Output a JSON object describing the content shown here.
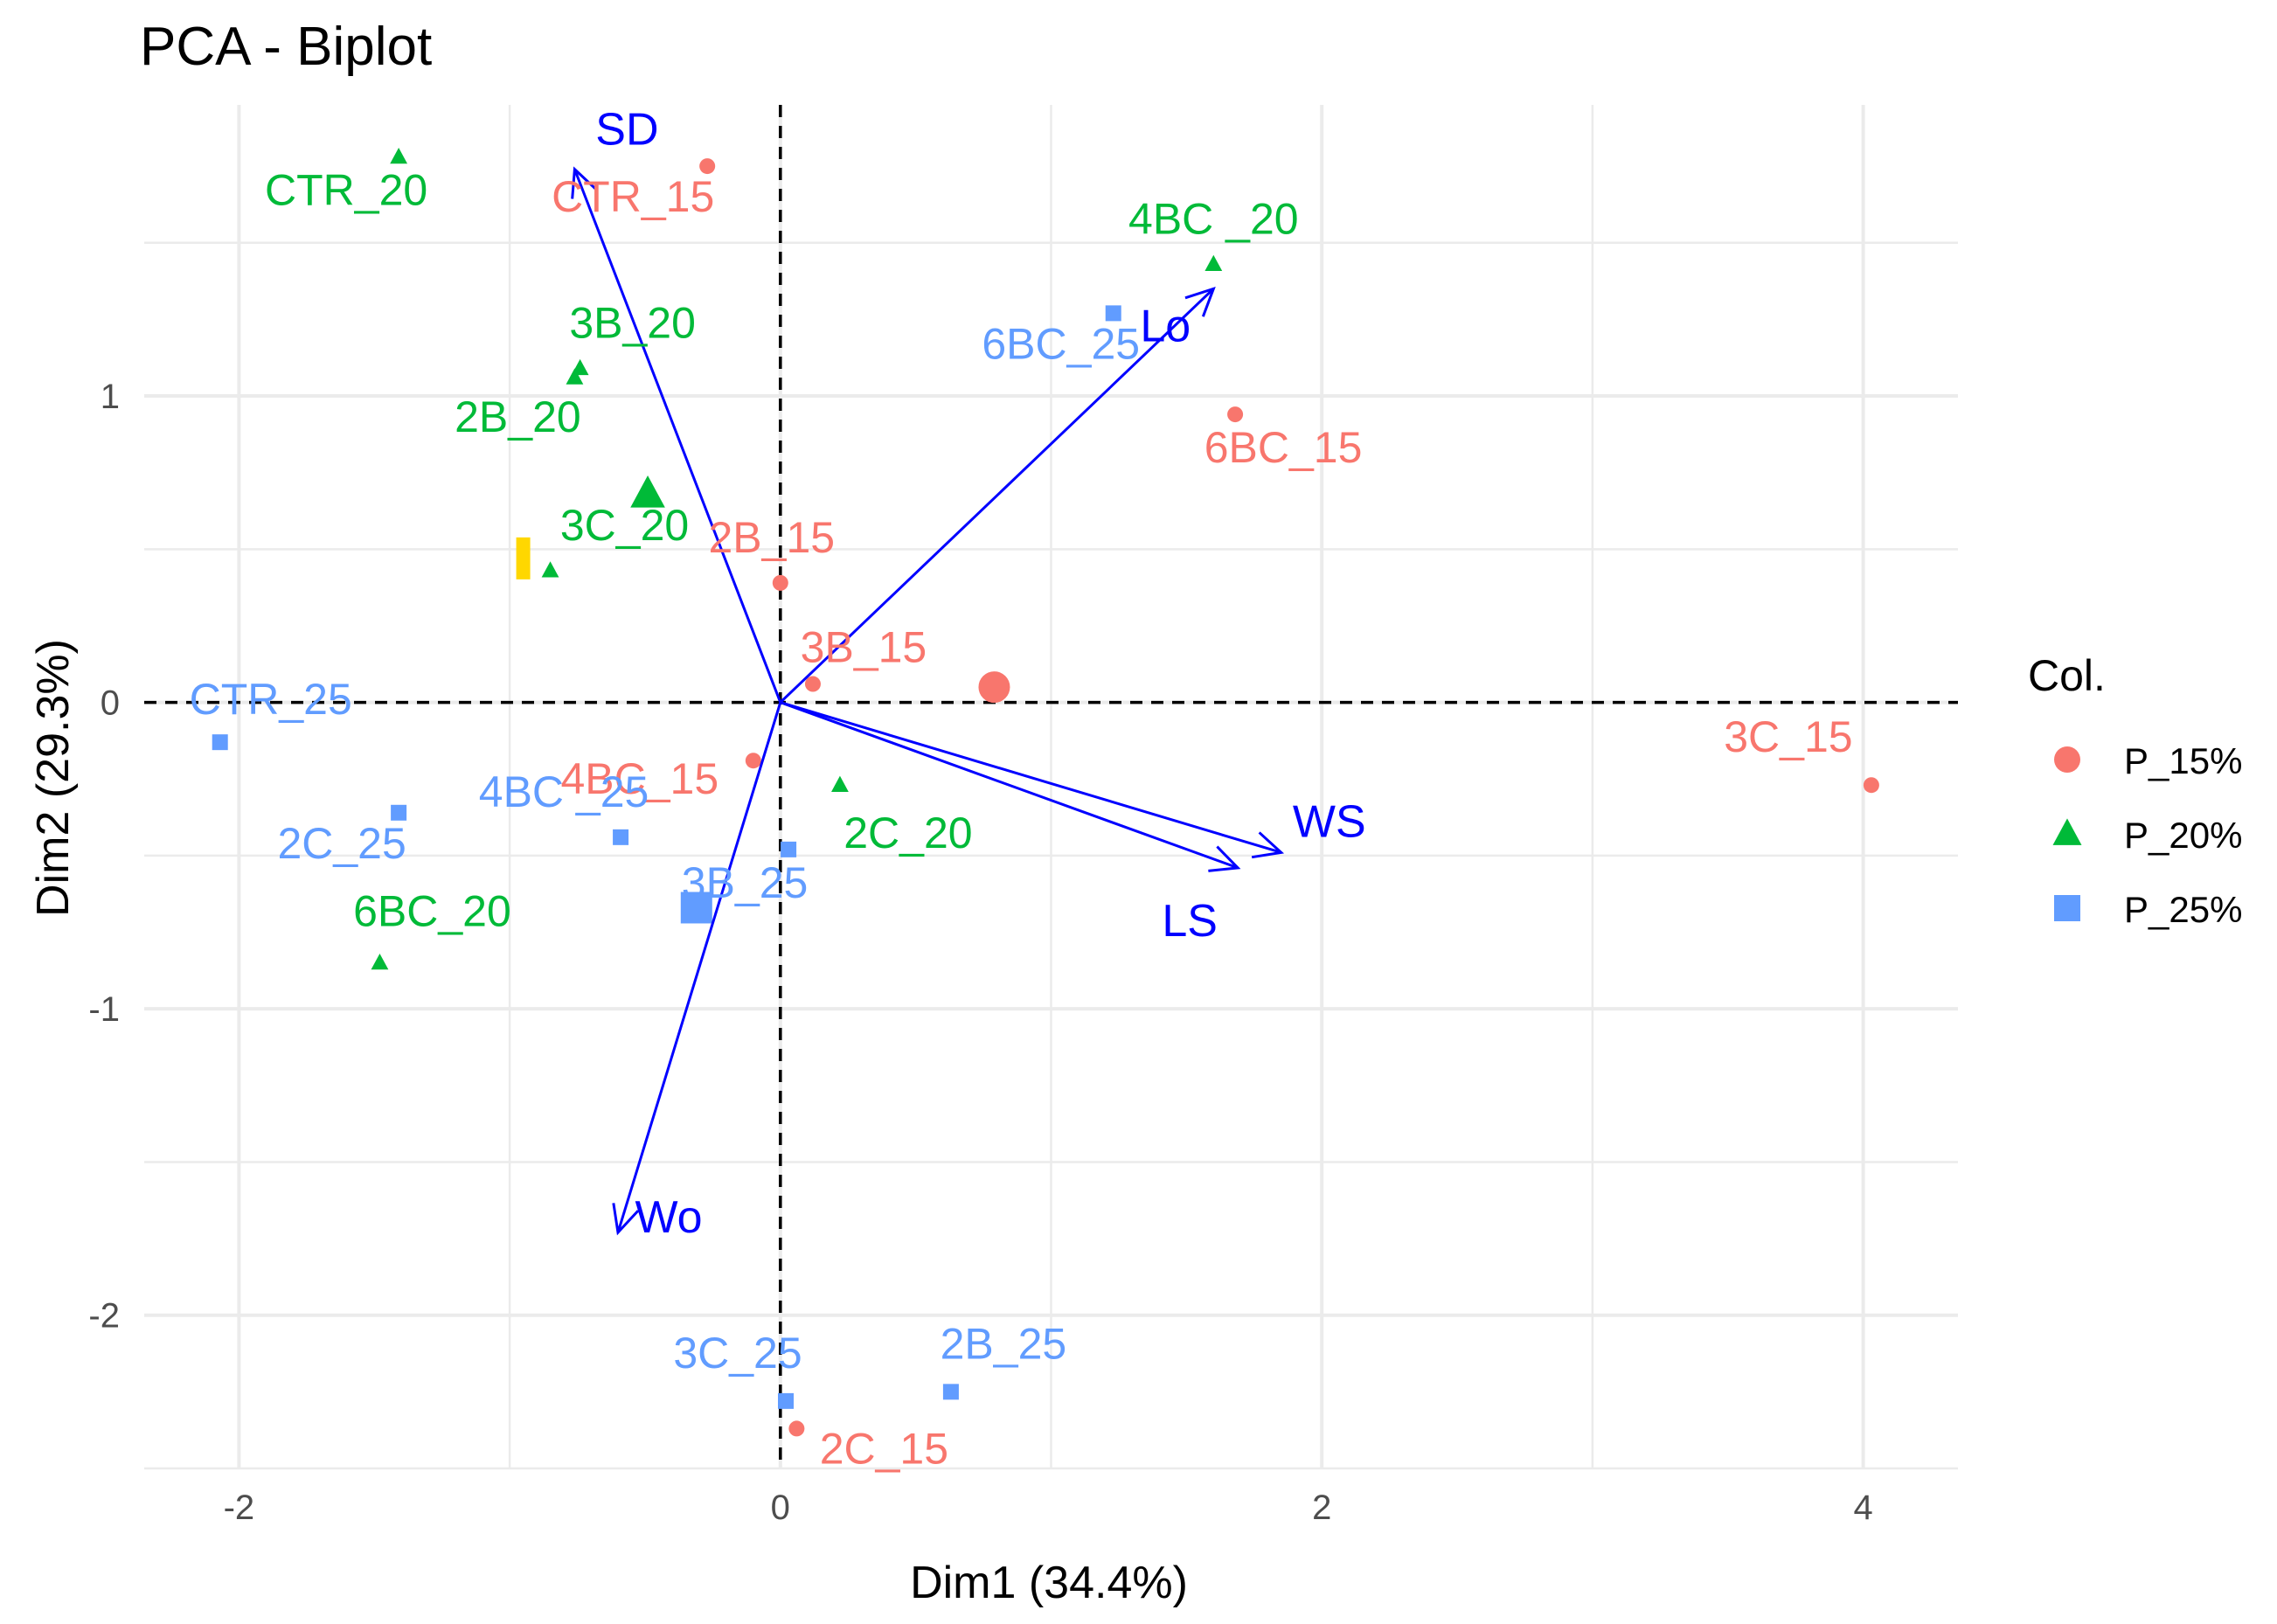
{
  "chart_data": {
    "type": "scatter",
    "title": "PCA - Biplot",
    "xlabel": "Dim1 (34.4%)",
    "ylabel": "Dim2 (29.3%)",
    "xlim": [
      -2.35,
      4.35
    ],
    "ylim": [
      -2.5,
      1.95
    ],
    "xticks": [
      -2,
      0,
      2,
      4
    ],
    "yticks": [
      -2,
      -1,
      0,
      1
    ],
    "grid": true,
    "legend_title": "Col.",
    "legend_position": "right",
    "series": [
      {
        "name": "P_15%",
        "color": "#F8766D",
        "shape": "circle",
        "points": [
          {
            "label": "CTR_15",
            "x": -0.27,
            "y": 1.75
          },
          {
            "label": "6BC_15",
            "x": 1.68,
            "y": 0.94
          },
          {
            "label": "2B_15",
            "x": 0.0,
            "y": 0.39
          },
          {
            "label": "3B_15",
            "x": 0.12,
            "y": 0.06
          },
          {
            "label": "4BC_15",
            "x": -0.1,
            "y": -0.19
          },
          {
            "label": "3C_15",
            "x": 4.03,
            "y": -0.27
          },
          {
            "label": "2C_15",
            "x": 0.06,
            "y": -2.37
          }
        ],
        "centroid": {
          "x": 0.79,
          "y": 0.05
        }
      },
      {
        "name": "P_20%",
        "color": "#00BA38",
        "shape": "triangle",
        "points": [
          {
            "label": "CTR_20",
            "x": -1.41,
            "y": 1.78
          },
          {
            "label": "4BC _20",
            "x": 1.6,
            "y": 1.43
          },
          {
            "label": "3B_20",
            "x": -0.74,
            "y": 1.09
          },
          {
            "label": "2B_20",
            "x": -0.76,
            "y": 1.06
          },
          {
            "label": "3C_20",
            "x": -0.85,
            "y": 0.43
          },
          {
            "label": "2C_20",
            "x": 0.22,
            "y": -0.27
          },
          {
            "label": "6BC_20",
            "x": -1.48,
            "y": -0.85
          }
        ],
        "centroid": {
          "x": -0.49,
          "y": 0.68
        }
      },
      {
        "name": "P_25%",
        "color": "#619CFF",
        "shape": "square",
        "points": [
          {
            "label": "6BC_25",
            "x": 1.23,
            "y": 1.27
          },
          {
            "label": "CTR_25",
            "x": -2.07,
            "y": -0.13
          },
          {
            "label": "2C_25",
            "x": -1.41,
            "y": -0.36
          },
          {
            "label": "4BC _25",
            "x": -0.59,
            "y": -0.44
          },
          {
            "label": "3B_25",
            "x": 0.03,
            "y": -0.48
          },
          {
            "label": "3C_25",
            "x": 0.02,
            "y": -2.28
          },
          {
            "label": "2B_25",
            "x": 0.63,
            "y": -2.25
          }
        ],
        "centroid": {
          "x": -0.31,
          "y": -0.67
        }
      }
    ],
    "variables": [
      {
        "name": "SD",
        "x": -0.76,
        "y": 1.74
      },
      {
        "name": "Lo",
        "x": 1.6,
        "y": 1.35
      },
      {
        "name": "WS",
        "x": 1.85,
        "y": -0.49
      },
      {
        "name": "LS",
        "x": 1.69,
        "y": -0.54
      },
      {
        "name": "Wo",
        "x": -0.6,
        "y": -1.73
      }
    ],
    "variable_color": "#0000FF",
    "extra_marker": {
      "color": "#FFD700",
      "x": -0.95,
      "y": 0.47
    }
  }
}
